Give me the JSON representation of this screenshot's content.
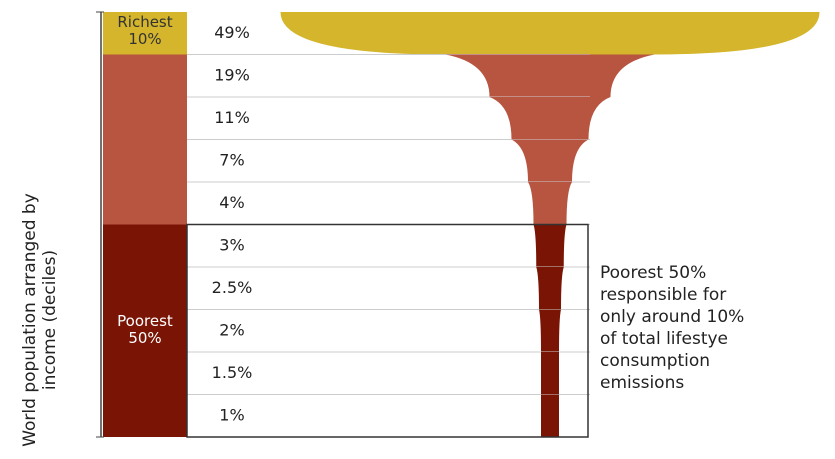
{
  "chart_data": {
    "type": "funnel",
    "y_label": "World population arranged by income (deciles)",
    "values": [
      49,
      19,
      11,
      7,
      4,
      3,
      2.5,
      2,
      1.5,
      1
    ],
    "value_labels": [
      "49%",
      "19%",
      "11%",
      "7%",
      "4%",
      "3%",
      "2.5%",
      "2%",
      "1.5%",
      "1%"
    ],
    "colors": [
      "#d4b52c",
      "#b85540",
      "#b85540",
      "#b85540",
      "#b85540",
      "#7a1505",
      "#7a1505",
      "#7a1505",
      "#7a1505",
      "#7a1505"
    ],
    "group_labels": [
      "Richest 10%",
      "Poorest 50%"
    ],
    "annotation": "Poorest 50% responsible for only around 10% of total lifestye consumption emissions"
  }
}
